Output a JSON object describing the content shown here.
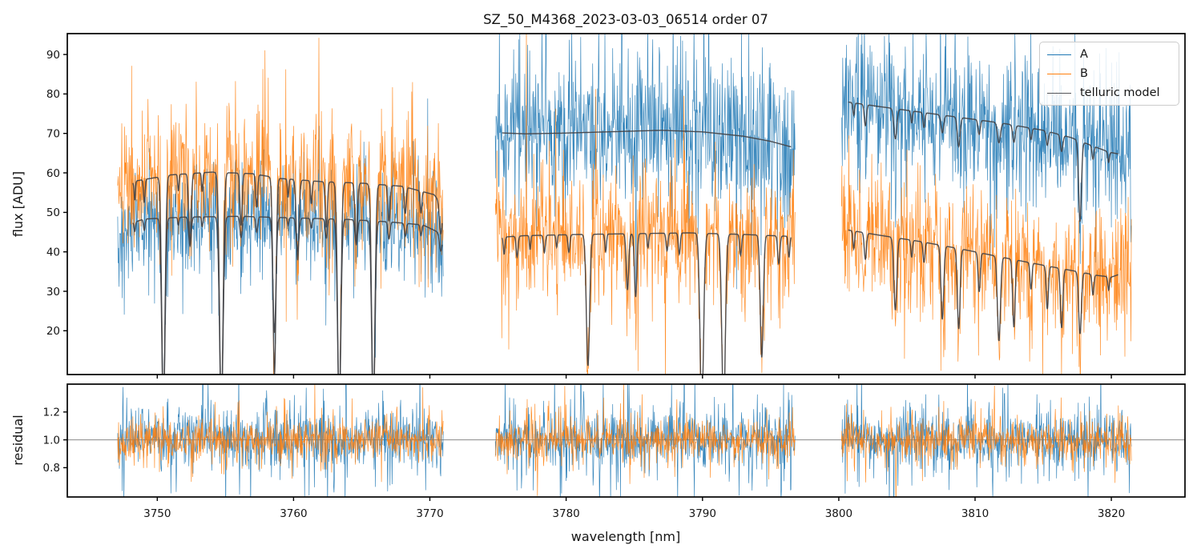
{
  "chart_data": {
    "type": "line",
    "title": "SZ_50_M4368_2023-03-03_06514  order 07",
    "xlabel": "wavelength [nm]",
    "top_ylabel": "flux [ADU]",
    "bottom_ylabel": "residual",
    "xlim": [
      3743.4,
      3825.4
    ],
    "xticks": {
      "values": [
        3750,
        3760,
        3770,
        3780,
        3790,
        3800,
        3810,
        3820
      ],
      "labels": [
        "3750",
        "3760",
        "3770",
        "3780",
        "3790",
        "3800",
        "3810",
        "3820"
      ]
    },
    "top": {
      "ylim": [
        8.9,
        95.3
      ],
      "yticks": {
        "values": [
          20,
          30,
          40,
          50,
          60,
          70,
          80,
          90
        ],
        "labels": [
          "20",
          "30",
          "40",
          "50",
          "60",
          "70",
          "80",
          "90"
        ]
      }
    },
    "bottom": {
      "ylim": [
        0.59,
        1.4
      ],
      "yticks": {
        "values": [
          0.8,
          1.0,
          1.2
        ],
        "labels": [
          "0.8",
          "1.0",
          "1.2"
        ]
      },
      "reference_line": 1.0,
      "noise_sigma": {
        "A": 0.105,
        "B": 0.072
      }
    },
    "colors": {
      "A": "#1f77b4",
      "B": "#ff7f0e",
      "telluric": "#45464a",
      "reference": "#8a8a8a"
    },
    "legend": [
      {
        "label": "A",
        "color": "#1f77b4"
      },
      {
        "label": "B",
        "color": "#ff7f0e"
      },
      {
        "label": "telluric model",
        "color": "#55565a"
      }
    ],
    "segments": [
      {
        "noise_range": [
          3747.1,
          3771.0
        ],
        "model_range": [
          3748.2,
          3770.9
        ],
        "A": {
          "noise_sigma": 6.8,
          "continuum": [
            [
              3747.1,
              46.0
            ],
            [
              3749,
              48.3
            ],
            [
              3752,
              48.8
            ],
            [
              3756,
              49.0
            ],
            [
              3760,
              48.6
            ],
            [
              3764,
              48.2
            ],
            [
              3767,
              47.6
            ],
            [
              3769.5,
              46.8
            ],
            [
              3770.9,
              44.5
            ]
          ]
        },
        "B": {
          "noise_sigma": 8.2,
          "continuum": [
            [
              3747.1,
              55.5
            ],
            [
              3748.5,
              58.0
            ],
            [
              3751,
              59.5
            ],
            [
              3754,
              60.2
            ],
            [
              3757,
              59.8
            ],
            [
              3759,
              58.6
            ],
            [
              3762,
              57.8
            ],
            [
              3765,
              57.4
            ],
            [
              3768,
              56.6
            ],
            [
              3770.3,
              54.5
            ],
            [
              3770.9,
              52.0
            ]
          ]
        },
        "telluric_lines": [
          [
            3748.35,
            0.05,
            0.08,
            0.05
          ],
          [
            3749.05,
            0.06,
            0.1,
            0.06
          ],
          [
            3750.45,
            0.12,
            1.0,
            1.0
          ],
          [
            3751.55,
            0.05,
            0.07,
            0.04
          ],
          [
            3752.4,
            0.09,
            0.3,
            0.15
          ],
          [
            3753.3,
            0.05,
            0.08,
            0.05
          ],
          [
            3754.7,
            0.13,
            1.0,
            1.0
          ],
          [
            3756.15,
            0.08,
            0.22,
            0.11
          ],
          [
            3757.3,
            0.07,
            0.14,
            0.08
          ],
          [
            3758.6,
            0.11,
            0.85,
            0.6
          ],
          [
            3759.6,
            0.05,
            0.08,
            0.04
          ],
          [
            3760.3,
            0.1,
            0.35,
            0.17
          ],
          [
            3761.3,
            0.06,
            0.1,
            0.05
          ],
          [
            3762.4,
            0.08,
            0.2,
            0.1
          ],
          [
            3763.35,
            0.12,
            1.0,
            1.0
          ],
          [
            3764.6,
            0.09,
            0.26,
            0.13
          ],
          [
            3765.85,
            0.12,
            1.0,
            1.0
          ],
          [
            3767.0,
            0.08,
            0.16,
            0.09
          ],
          [
            3768.2,
            0.07,
            0.12,
            0.07
          ],
          [
            3769.35,
            0.06,
            0.1,
            0.06
          ],
          [
            3770.8,
            0.1,
            0.15,
            0.1
          ]
        ]
      },
      {
        "noise_range": [
          3774.8,
          3796.8
        ],
        "model_range": [
          3775.3,
          3796.5
        ],
        "A": {
          "noise_sigma": 9.5,
          "continuum": [
            [
              3774.8,
              70.2
            ],
            [
              3777,
              69.9
            ],
            [
              3780,
              70.1
            ],
            [
              3784,
              70.5
            ],
            [
              3787,
              70.8
            ],
            [
              3790,
              70.4
            ],
            [
              3793,
              69.3
            ],
            [
              3795,
              68.0
            ],
            [
              3796.5,
              66.6
            ]
          ]
        },
        "B": {
          "noise_sigma": 7.8,
          "continuum": [
            [
              3774.8,
              43.6
            ],
            [
              3777,
              44.1
            ],
            [
              3781,
              44.4
            ],
            [
              3785,
              44.6
            ],
            [
              3789,
              44.8
            ],
            [
              3793,
              44.4
            ],
            [
              3796.5,
              43.9
            ]
          ]
        },
        "telluric_lines": [
          [
            3775.45,
            0.06,
            0.1,
            0
          ],
          [
            3776.4,
            0.07,
            0.12,
            0
          ],
          [
            3777.35,
            0.05,
            0.08,
            0
          ],
          [
            3778.4,
            0.07,
            0.1,
            0
          ],
          [
            3779.3,
            0.05,
            0.07,
            0
          ],
          [
            3780.2,
            0.07,
            0.1,
            0
          ],
          [
            3781.6,
            0.12,
            0.75,
            0
          ],
          [
            3782.9,
            0.06,
            0.1,
            0
          ],
          [
            3784.5,
            0.09,
            0.32,
            0
          ],
          [
            3785.1,
            0.09,
            0.36,
            0
          ],
          [
            3786.0,
            0.06,
            0.08,
            0
          ],
          [
            3787.4,
            0.07,
            0.1,
            0
          ],
          [
            3788.3,
            0.07,
            0.12,
            0
          ],
          [
            3789.95,
            0.13,
            1.0,
            0
          ],
          [
            3791.55,
            0.13,
            1.0,
            0
          ],
          [
            3792.8,
            0.07,
            0.12,
            0
          ],
          [
            3794.35,
            0.11,
            0.7,
            0
          ],
          [
            3795.6,
            0.08,
            0.16,
            0
          ],
          [
            3796.35,
            0.06,
            0.12,
            0
          ]
        ]
      },
      {
        "noise_range": [
          3800.2,
          3821.5
        ],
        "model_range": [
          3800.7,
          3820.5
        ],
        "A": {
          "noise_sigma": 9.0,
          "continuum": [
            [
              3800.2,
              78.2
            ],
            [
              3803,
              76.8
            ],
            [
              3806,
              75.4
            ],
            [
              3809,
              74.0
            ],
            [
              3812,
              72.6
            ],
            [
              3815,
              70.8
            ],
            [
              3817,
              69.0
            ],
            [
              3818.5,
              67.0
            ],
            [
              3819.8,
              65.3
            ],
            [
              3820.5,
              64.8
            ]
          ]
        },
        "B": {
          "noise_sigma": 7.8,
          "continuum": [
            [
              3800.2,
              45.8
            ],
            [
              3803,
              44.2
            ],
            [
              3806,
              42.6
            ],
            [
              3809,
              40.7
            ],
            [
              3812,
              38.6
            ],
            [
              3815,
              36.6
            ],
            [
              3817.5,
              35.0
            ],
            [
              3819,
              34.0
            ],
            [
              3820.0,
              33.6
            ],
            [
              3820.5,
              34.2
            ]
          ]
        },
        "telluric_lines": [
          [
            3801.1,
            0.06,
            0.1,
            0.04
          ],
          [
            3801.95,
            0.08,
            0.15,
            0.07
          ],
          [
            3804.15,
            0.11,
            0.42,
            0.1
          ],
          [
            3805.35,
            0.06,
            0.1,
            0.04
          ],
          [
            3806.25,
            0.07,
            0.12,
            0.05
          ],
          [
            3807.6,
            0.1,
            0.45,
            0.06
          ],
          [
            3808.8,
            0.1,
            0.5,
            0.1
          ],
          [
            3810.3,
            0.08,
            0.25,
            0.05
          ],
          [
            3811.75,
            0.11,
            0.55,
            0.07
          ],
          [
            3812.85,
            0.09,
            0.45,
            0.06
          ],
          [
            3814.1,
            0.07,
            0.18,
            0.04
          ],
          [
            3815.3,
            0.08,
            0.3,
            0.05
          ],
          [
            3816.35,
            0.09,
            0.42,
            0.06
          ],
          [
            3817.7,
            0.1,
            0.45,
            0.3
          ],
          [
            3818.65,
            0.07,
            0.15,
            0.05
          ],
          [
            3819.8,
            0.06,
            0.1,
            0.04
          ]
        ]
      }
    ]
  }
}
